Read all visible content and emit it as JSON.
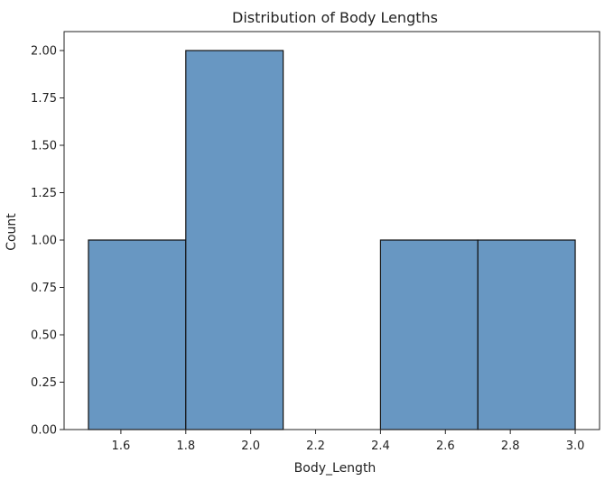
{
  "chart_data": {
    "type": "bar",
    "title": "Distribution of Body Lengths",
    "xlabel": "Body_Length",
    "ylabel": "Count",
    "bins": [
      {
        "start": 1.5,
        "end": 1.8,
        "count": 1
      },
      {
        "start": 1.8,
        "end": 2.1,
        "count": 2
      },
      {
        "start": 2.1,
        "end": 2.4,
        "count": 0
      },
      {
        "start": 2.4,
        "end": 2.7,
        "count": 1
      },
      {
        "start": 2.7,
        "end": 3.0,
        "count": 1
      }
    ],
    "xlim": [
      1.425,
      3.075
    ],
    "ylim": [
      0,
      2.1
    ],
    "xticks": [
      "1.6",
      "1.8",
      "2.0",
      "2.2",
      "2.4",
      "2.6",
      "2.8",
      "3.0"
    ],
    "yticks": [
      "0.00",
      "0.25",
      "0.50",
      "0.75",
      "1.00",
      "1.25",
      "1.50",
      "1.75",
      "2.00"
    ],
    "grid": false,
    "colors": {
      "bar_fill": "#6897c2",
      "bar_edge": "#111111"
    }
  }
}
